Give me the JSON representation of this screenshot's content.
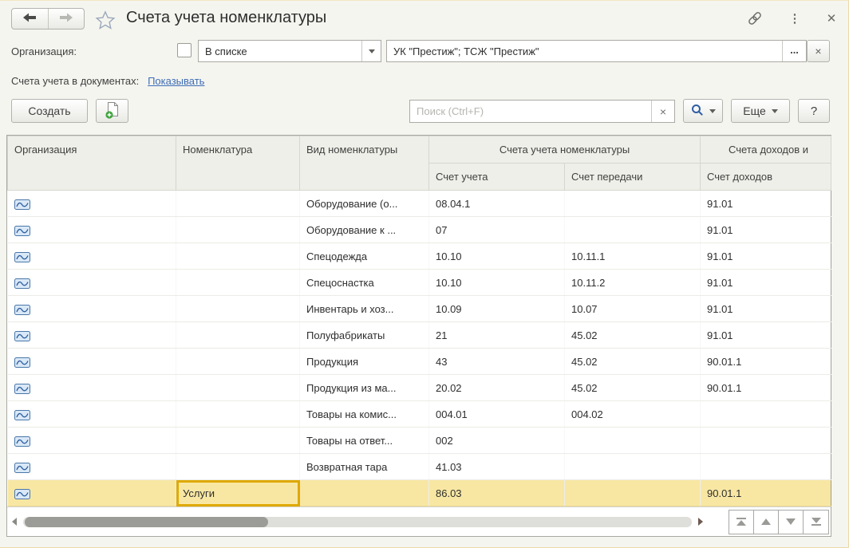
{
  "window": {
    "title": "Счета учета номенклатуры",
    "close_glyph": "✕",
    "menu_glyph": "⋮"
  },
  "filter": {
    "label": "Организация:",
    "mode_value": "В списке",
    "org_value": "УК \"Престиж\"; ТСЖ \"Престиж\"",
    "ellipsis_label": "...",
    "clear_glyph": "×"
  },
  "doc_accounts": {
    "label": "Счета учета в документах:",
    "link": "Показывать"
  },
  "toolbar": {
    "create_label": "Создать",
    "search_placeholder": "Поиск (Ctrl+F)",
    "search_clear_glyph": "×",
    "more_label": "Еще",
    "help_label": "?"
  },
  "table": {
    "headers": {
      "org": "Организация",
      "nomenclature": "Номенклатура",
      "type": "Вид номенклатуры",
      "group_accounts": "Счета учета номенклатуры",
      "group_income": "Счета доходов и",
      "account": "Счет учета",
      "transfer": "Счет передачи",
      "income": "Счет доходов"
    },
    "rows": [
      {
        "org": "",
        "nomenclature": "",
        "type": "Оборудование (о...",
        "account": "08.04.1",
        "transfer": "",
        "income": "91.01",
        "selected": false
      },
      {
        "org": "",
        "nomenclature": "",
        "type": "Оборудование к ...",
        "account": "07",
        "transfer": "",
        "income": "91.01",
        "selected": false
      },
      {
        "org": "",
        "nomenclature": "",
        "type": "Спецодежда",
        "account": "10.10",
        "transfer": "10.11.1",
        "income": "91.01",
        "selected": false
      },
      {
        "org": "",
        "nomenclature": "",
        "type": "Спецоснастка",
        "account": "10.10",
        "transfer": "10.11.2",
        "income": "91.01",
        "selected": false
      },
      {
        "org": "",
        "nomenclature": "",
        "type": "Инвентарь и хоз...",
        "account": "10.09",
        "transfer": "10.07",
        "income": "91.01",
        "selected": false
      },
      {
        "org": "",
        "nomenclature": "",
        "type": "Полуфабрикаты",
        "account": "21",
        "transfer": "45.02",
        "income": "91.01",
        "selected": false
      },
      {
        "org": "",
        "nomenclature": "",
        "type": "Продукция",
        "account": "43",
        "transfer": "45.02",
        "income": "90.01.1",
        "selected": false
      },
      {
        "org": "",
        "nomenclature": "",
        "type": "Продукция из ма...",
        "account": "20.02",
        "transfer": "45.02",
        "income": "90.01.1",
        "selected": false
      },
      {
        "org": "",
        "nomenclature": "",
        "type": "Товары на комис...",
        "account": "004.01",
        "transfer": "004.02",
        "income": "",
        "selected": false
      },
      {
        "org": "",
        "nomenclature": "",
        "type": "Товары на ответ...",
        "account": "002",
        "transfer": "",
        "income": "",
        "selected": false
      },
      {
        "org": "",
        "nomenclature": "",
        "type": "Возвратная тара",
        "account": "41.03",
        "transfer": "",
        "income": "",
        "selected": false
      },
      {
        "org": "",
        "nomenclature": "Услуги",
        "type": "",
        "account": "86.03",
        "transfer": "",
        "income": "90.01.1",
        "selected": true,
        "active_cell": "nomenclature"
      }
    ]
  },
  "colors": {
    "selection_bg": "#F8E7A3",
    "selection_border": "#DFA900",
    "link_blue": "#3D6DB5",
    "header_bg": "#EFEFE9"
  }
}
